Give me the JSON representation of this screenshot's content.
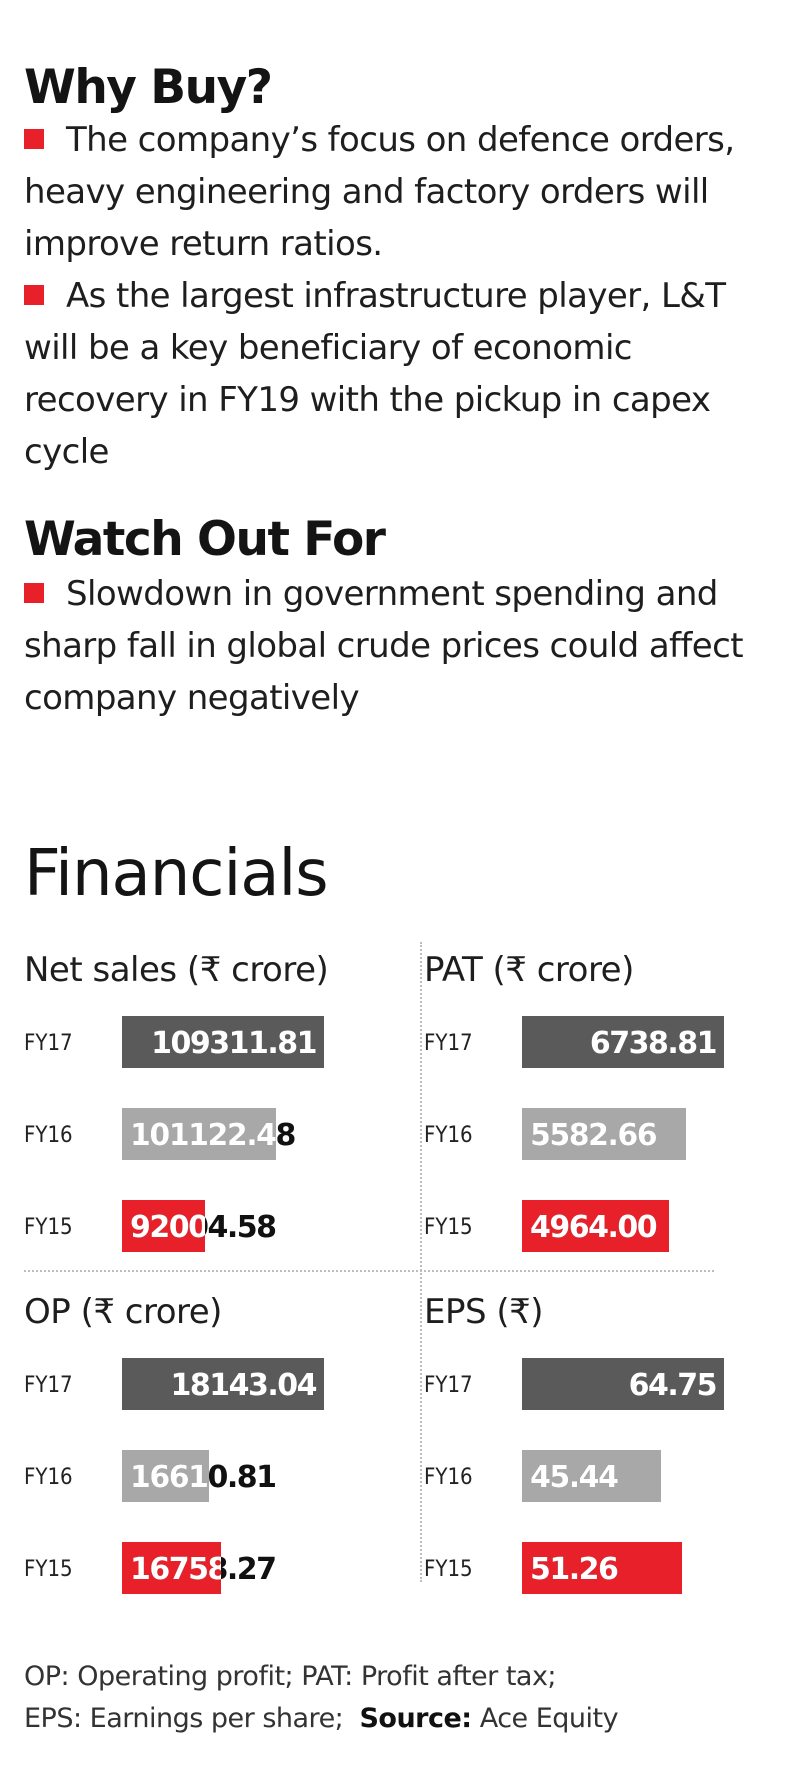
{
  "why_buy": {
    "heading": "Why Buy?",
    "bullets": [
      "The company’s focus on defence orders, heavy engineering and factory orders will improve return ratios.",
      "As the largest infrastructure player, L&T will be a key beneficiary of economic recovery in FY19 with the pickup in capex cycle"
    ]
  },
  "watch_out": {
    "heading": "Watch Out For",
    "bullets": [
      "Slowdown in government spending and sharp fall in global crude prices could affect company negatively"
    ]
  },
  "financials_title": "Financials",
  "colors": {
    "FY17": "#5a5a5a",
    "FY16": "#a8a8a8",
    "FY15": "#e8202a",
    "bullet": "#e8202a"
  },
  "chart_data": [
    {
      "type": "bar",
      "orientation": "horizontal",
      "title": "Net sales (₹ crore)",
      "categories": [
        "FY17",
        "FY16",
        "FY15"
      ],
      "values": [
        109311.81,
        101122.48,
        92004.58
      ],
      "labels": [
        "109311.81",
        "101122.48",
        "92004.58"
      ],
      "bar_fraction": [
        1.0,
        0.76,
        0.41
      ]
    },
    {
      "type": "bar",
      "orientation": "horizontal",
      "title": "PAT (₹ crore)",
      "categories": [
        "FY17",
        "FY16",
        "FY15"
      ],
      "values": [
        6738.81,
        5582.66,
        4964.0
      ],
      "labels": [
        "6738.81",
        "5582.66",
        "4964.00"
      ],
      "bar_fraction": [
        1.0,
        0.81,
        0.73
      ]
    },
    {
      "type": "bar",
      "orientation": "horizontal",
      "title": "OP (₹ crore)",
      "categories": [
        "FY17",
        "FY16",
        "FY15"
      ],
      "values": [
        18143.04,
        16610.81,
        16758.27
      ],
      "labels": [
        "18143.04",
        "16610.81",
        "16758.27"
      ],
      "bar_fraction": [
        1.0,
        0.43,
        0.49
      ]
    },
    {
      "type": "bar",
      "orientation": "horizontal",
      "title": "EPS (₹)",
      "categories": [
        "FY17",
        "FY16",
        "FY15"
      ],
      "values": [
        64.75,
        45.44,
        51.26
      ],
      "labels": [
        "64.75",
        "45.44",
        "51.26"
      ],
      "bar_fraction": [
        1.0,
        0.69,
        0.79
      ]
    }
  ],
  "footer": {
    "line1": "OP: Operating profit; PAT: Profit after tax;",
    "line2": "EPS: Earnings per share;",
    "source_label": "Source:",
    "source_value": "Ace Equity"
  }
}
